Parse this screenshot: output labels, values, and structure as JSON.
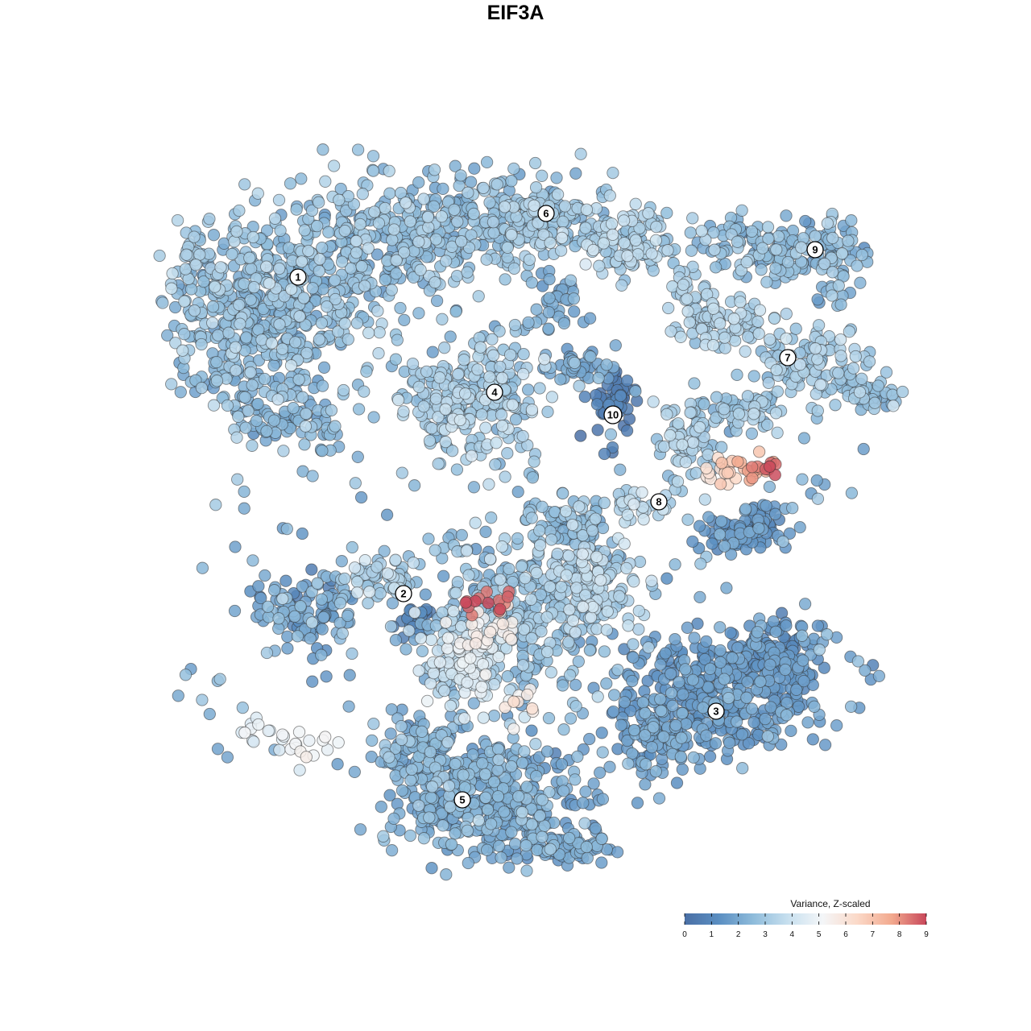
{
  "chart_data": {
    "type": "scatter",
    "title": "EIF3A",
    "colorbar": {
      "title": "Variance, Z-scaled",
      "min": 0,
      "max": 9,
      "ticks": [
        0,
        1,
        2,
        3,
        4,
        5,
        6,
        7,
        8,
        9
      ],
      "colors": [
        "#4a6fa5",
        "#5b8fc2",
        "#8fbcdb",
        "#c8e0ef",
        "#f4f6f8",
        "#fbd9c8",
        "#f2a98e",
        "#c8475a"
      ],
      "placement": "bottom-right"
    },
    "axes": {
      "x": "none",
      "y": "none",
      "grid": false
    },
    "clusters": [
      {
        "id": "1",
        "value": 2.6
      },
      {
        "id": "2",
        "value": 2.3
      },
      {
        "id": "3",
        "value": 1.5
      },
      {
        "id": "4",
        "value": 2.9
      },
      {
        "id": "5",
        "value": 2.0
      },
      {
        "id": "6",
        "value": 2.7
      },
      {
        "id": "7",
        "value": 3.0
      },
      {
        "id": "8",
        "value": 3.2
      },
      {
        "id": "9",
        "value": 2.3
      },
      {
        "id": "10",
        "value": 0.6
      }
    ]
  }
}
